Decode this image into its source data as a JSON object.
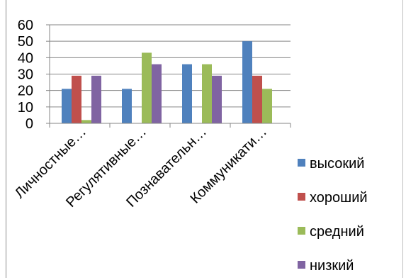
{
  "chart_data": {
    "type": "bar",
    "categories": [
      "Личностные…",
      "Регулятивные…",
      "Познавательн…",
      "Коммуникати…"
    ],
    "series": [
      {
        "name": "высокий",
        "color": "#4f81bd",
        "values": [
          21,
          21,
          36,
          50
        ]
      },
      {
        "name": "хороший",
        "color": "#c0504d",
        "values": [
          29,
          0,
          0,
          29
        ]
      },
      {
        "name": "средний",
        "color": "#9bbb59",
        "values": [
          2,
          43,
          36,
          21
        ]
      },
      {
        "name": "низкий",
        "color": "#8064a2",
        "values": [
          29,
          36,
          29,
          0
        ]
      }
    ],
    "ylim": [
      0,
      60
    ],
    "yticks": [
      0,
      10,
      20,
      30,
      40,
      50,
      60
    ],
    "grid": true,
    "legend_position": "right",
    "title": "",
    "xlabel": "",
    "ylabel": ""
  }
}
